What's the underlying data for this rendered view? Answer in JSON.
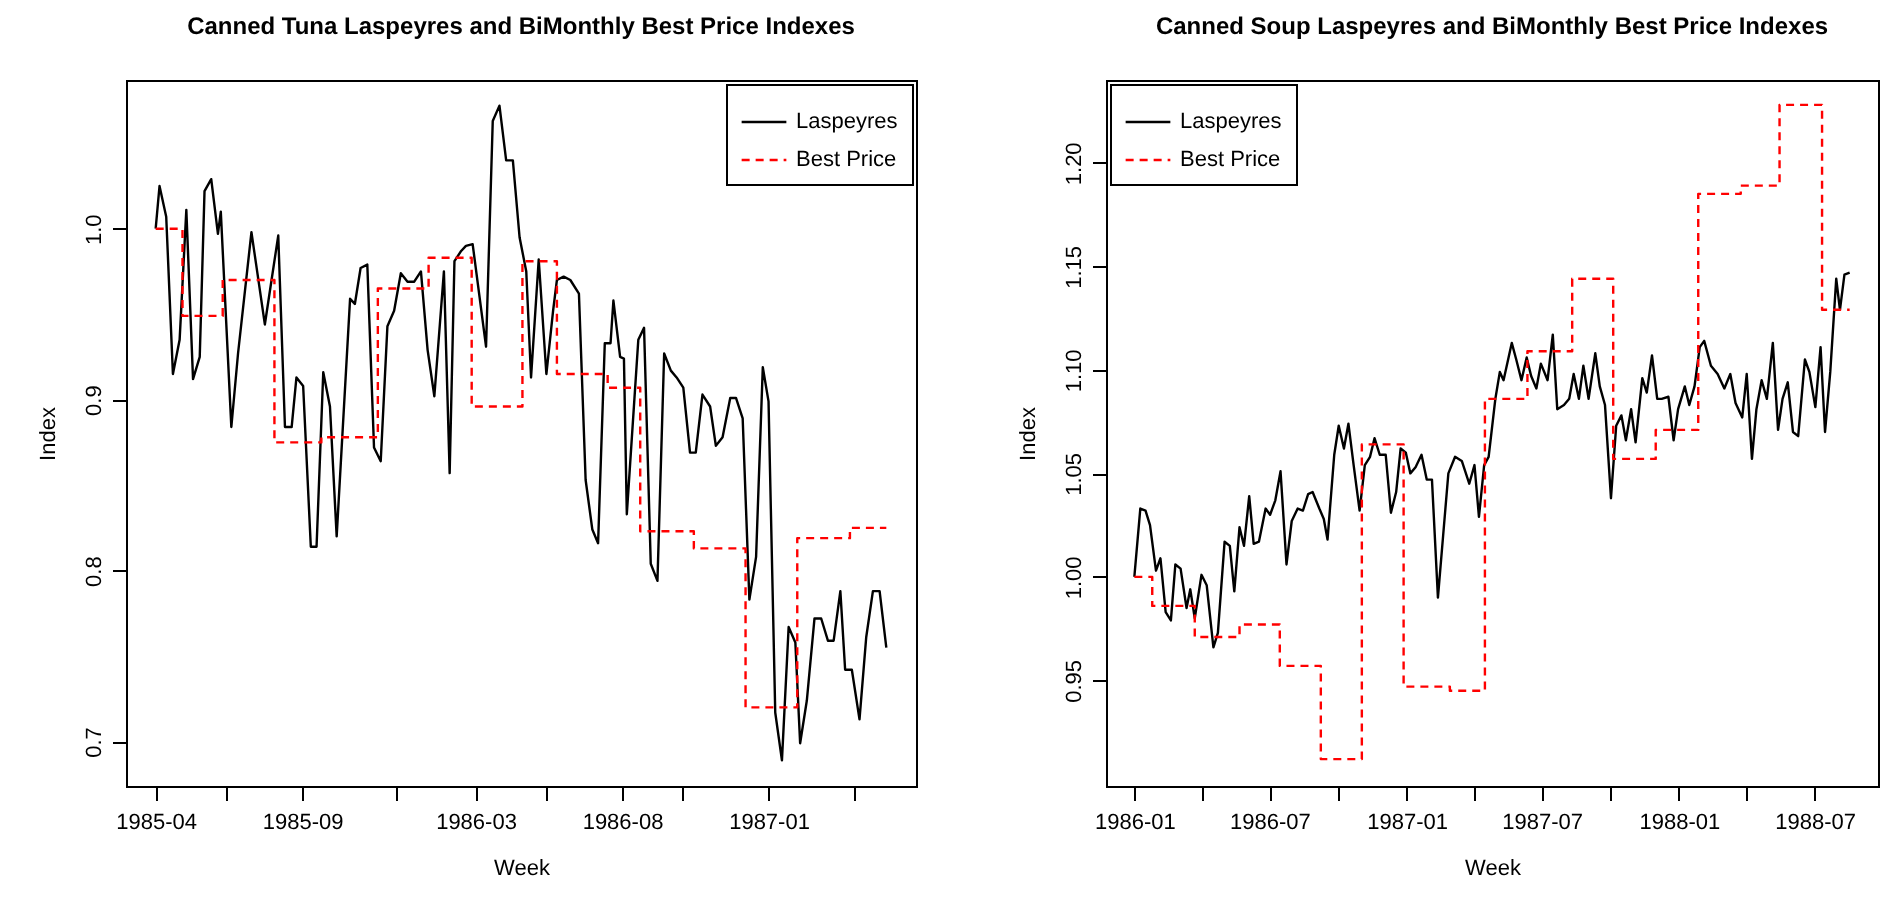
{
  "chart_data": [
    {
      "type": "line",
      "title": "Canned Tuna Laspeyres and BiMonthly Best Price Indexes",
      "xlabel": "Week",
      "ylabel": "Index",
      "legend": "top right",
      "xlim": [
        "1985-03-01",
        "1987-06-04"
      ],
      "ylim": [
        0.674,
        1.087
      ],
      "xticks": [
        "1985-04",
        {
          "value": "1985-06-13",
          "label": null
        },
        "1985-09",
        {
          "value": "1985-12-07",
          "label": null
        },
        "1986-03",
        {
          "value": "1986-05-14",
          "label": null
        },
        "1986-08",
        {
          "value": "1986-10-03",
          "label": null
        },
        "1987-01",
        {
          "value": "1987-03-31",
          "label": null
        }
      ],
      "yticks": [
        0.7,
        0.8,
        0.9,
        {
          "value": 1,
          "label": "1.0"
        }
      ],
      "series": [
        {
          "name": "Laspeyres",
          "color": "#000000",
          "line_style": "solid",
          "x": [
            "1985-04-01",
            "1985-04-05",
            "1985-04-12",
            "1985-04-19",
            "1985-04-26",
            "1985-05-03",
            "1985-05-10",
            "1985-05-17",
            "1985-05-22",
            "1985-05-29",
            "1985-06-05",
            "1985-06-08",
            "1985-06-19",
            "1985-06-26",
            "1985-07-10",
            "1985-07-24",
            "1985-08-07",
            "1985-08-14",
            "1985-08-21",
            "1985-08-26",
            "1985-09-02",
            "1985-09-10",
            "1985-09-16",
            "1985-09-23",
            "1985-09-30",
            "1985-10-07",
            "1985-10-21",
            "1985-10-26",
            "1985-11-01",
            "1985-11-08",
            "1985-11-15",
            "1985-11-22",
            "1985-11-29",
            "1985-12-06",
            "1985-12-13",
            "1985-12-20",
            "1985-12-27",
            "1986-01-03",
            "1986-01-10",
            "1986-01-17",
            "1986-01-27",
            "1986-02-02",
            "1986-02-07",
            "1986-02-14",
            "1986-02-19",
            "1986-02-26",
            "1986-03-12",
            "1986-03-19",
            "1986-03-26",
            "1986-04-02",
            "1986-04-09",
            "1986-04-16",
            "1986-04-23",
            "1986-04-28",
            "1986-05-06",
            "1986-05-14",
            "1986-05-21",
            "1986-05-25",
            "1986-06-01",
            "1986-06-08",
            "1986-06-17",
            "1986-06-24",
            "1986-07-01",
            "1986-07-07",
            "1986-07-14",
            "1986-07-20",
            "1986-07-23",
            "1986-07-30",
            "1986-08-03",
            "1986-08-06",
            "1986-08-18",
            "1986-08-24",
            "1986-08-31",
            "1986-09-07",
            "1986-09-14",
            "1986-09-21",
            "1986-09-27",
            "1986-10-04",
            "1986-10-11",
            "1986-10-17",
            "1986-10-24",
            "1986-11-01",
            "1986-11-07",
            "1986-11-14",
            "1986-11-22",
            "1986-11-28",
            "1986-12-05",
            "1986-12-12",
            "1986-12-19",
            "1986-12-26",
            "1987-01-01",
            "1987-01-08",
            "1987-01-15",
            "1987-01-22",
            "1987-01-29",
            "1987-02-03",
            "1987-02-10",
            "1987-02-18",
            "1987-02-25",
            "1987-03-04",
            "1987-03-10",
            "1987-03-17",
            "1987-03-22",
            "1987-03-29",
            "1987-04-06",
            "1987-04-13",
            "1987-04-20",
            "1987-04-27",
            "1987-05-04"
          ],
          "values": [
            1.0,
            1.025,
            1.007,
            0.915,
            0.935,
            1.011,
            0.912,
            0.925,
            1.022,
            1.029,
            0.997,
            1.01,
            0.884,
            0.927,
            0.998,
            0.944,
            0.996,
            0.884,
            0.884,
            0.913,
            0.908,
            0.814,
            0.814,
            0.916,
            0.896,
            0.82,
            0.959,
            0.956,
            0.977,
            0.979,
            0.872,
            0.864,
            0.943,
            0.952,
            0.974,
            0.969,
            0.969,
            0.975,
            0.929,
            0.902,
            0.975,
            0.857,
            0.981,
            0.987,
            0.99,
            0.991,
            0.931,
            1.063,
            1.072,
            1.04,
            1.04,
            0.995,
            0.975,
            0.913,
            0.982,
            0.915,
            0.952,
            0.97,
            0.972,
            0.97,
            0.962,
            0.853,
            0.824,
            0.816,
            0.933,
            0.933,
            0.958,
            0.925,
            0.924,
            0.833,
            0.935,
            0.942,
            0.804,
            0.794,
            0.927,
            0.917,
            0.913,
            0.907,
            0.869,
            0.869,
            0.903,
            0.896,
            0.873,
            0.878,
            0.901,
            0.901,
            0.889,
            0.783,
            0.808,
            0.919,
            0.899,
            0.717,
            0.689,
            0.767,
            0.758,
            0.699,
            0.724,
            0.772,
            0.772,
            0.759,
            0.759,
            0.788,
            0.742,
            0.742,
            0.713,
            0.761,
            0.788,
            0.788,
            0.755
          ]
        },
        {
          "name": "Best Price",
          "color": "#ff0000",
          "type": "step",
          "line_style": "dashed",
          "x": [
            "1985-04-01",
            "1985-04-29",
            "1985-06-10",
            "1985-08-03",
            "1985-09-21",
            "1985-11-19",
            "1986-01-11",
            "1986-02-25",
            "1986-04-19",
            "1986-05-25",
            "1986-07-17",
            "1986-08-20",
            "1986-10-15",
            "1986-12-08",
            "1987-01-31",
            "1987-03-27",
            "1987-05-04"
          ],
          "values": [
            1.0,
            0.949,
            0.97,
            0.875,
            0.878,
            0.965,
            0.983,
            0.896,
            0.981,
            0.915,
            0.907,
            0.823,
            0.813,
            0.72,
            0.819,
            0.825,
            0.825
          ]
        }
      ]
    },
    {
      "type": "line",
      "title": "Canned Soup Laspeyres and BiMonthly Best Price Indexes",
      "xlabel": "Week",
      "ylabel": "Index",
      "legend": "top left",
      "xlim": [
        "1985-11-24",
        "1988-09-24"
      ],
      "ylim": [
        0.899,
        1.24
      ],
      "xticks": [
        "1986-01",
        {
          "value": "1986-04",
          "label": null
        },
        "1986-07",
        {
          "value": "1986-10",
          "label": null
        },
        "1987-01",
        {
          "value": "1987-04",
          "label": null
        },
        "1987-07",
        {
          "value": "1987-10",
          "label": null
        },
        "1988-01",
        {
          "value": "1988-04",
          "label": null
        },
        "1988-07"
      ],
      "yticks": [
        0.95,
        {
          "value": 1,
          "label": "1.00"
        },
        1.05,
        {
          "value": 1.1,
          "label": "1.10"
        },
        1.15,
        {
          "value": 1.2,
          "label": "1.20"
        }
      ],
      "series": [
        {
          "name": "Laspeyres",
          "color": "#000000",
          "line_style": "solid",
          "x": [
            "1986-01-01",
            "1986-01-09",
            "1986-01-16",
            "1986-01-22",
            "1986-01-30",
            "1986-02-05",
            "1986-02-12",
            "1986-02-19",
            "1986-02-25",
            "1986-03-04",
            "1986-03-12",
            "1986-03-17",
            "1986-03-23",
            "1986-04-01",
            "1986-04-08",
            "1986-04-17",
            "1986-04-23",
            "1986-05-02",
            "1986-05-09",
            "1986-05-15",
            "1986-05-22",
            "1986-05-28",
            "1986-06-04",
            "1986-06-10",
            "1986-06-17",
            "1986-06-26",
            "1986-07-02",
            "1986-07-09",
            "1986-07-16",
            "1986-07-24",
            "1986-07-31",
            "1986-08-08",
            "1986-08-15",
            "1986-08-22",
            "1986-08-28",
            "1986-09-06",
            "1986-09-12",
            "1986-09-17",
            "1986-09-26",
            "1986-10-02",
            "1986-10-09",
            "1986-10-15",
            "1986-10-22",
            "1986-10-30",
            "1986-11-06",
            "1986-11-13",
            "1986-11-19",
            "1986-11-26",
            "1986-12-04",
            "1986-12-11",
            "1986-12-18",
            "1986-12-24",
            "1986-12-31",
            "1987-01-06",
            "1987-01-13",
            "1987-01-21",
            "1987-01-28",
            "1987-02-04",
            "1987-02-12",
            "1987-02-19",
            "1987-02-26",
            "1987-03-07",
            "1987-03-16",
            "1987-03-26",
            "1987-04-02",
            "1987-04-08",
            "1987-04-15",
            "1987-04-21",
            "1987-04-30",
            "1987-05-06",
            "1987-05-11",
            "1987-05-22",
            "1987-05-28",
            "1987-06-04",
            "1987-06-11",
            "1987-06-17",
            "1987-06-24",
            "1987-06-30",
            "1987-07-09",
            "1987-07-16",
            "1987-07-22",
            "1987-07-31",
            "1987-08-07",
            "1987-08-13",
            "1987-08-20",
            "1987-08-26",
            "1987-09-02",
            "1987-09-11",
            "1987-09-17",
            "1987-09-24",
            "1987-10-02",
            "1987-10-09",
            "1987-10-16",
            "1987-10-22",
            "1987-10-29",
            "1987-11-04",
            "1987-11-13",
            "1987-11-19",
            "1987-11-26",
            "1987-12-03",
            "1987-12-09",
            "1987-12-18",
            "1987-12-25",
            "1987-12-31",
            "1988-01-09",
            "1988-01-15",
            "1988-01-22",
            "1988-01-29",
            "1988-02-04",
            "1988-02-13",
            "1988-02-22",
            "1988-03-02",
            "1988-03-10",
            "1988-03-17",
            "1988-03-26",
            "1988-04-01",
            "1988-04-08",
            "1988-04-14",
            "1988-04-21",
            "1988-04-28",
            "1988-05-06",
            "1988-05-13",
            "1988-05-19",
            "1988-05-26",
            "1988-06-02",
            "1988-06-09",
            "1988-06-18",
            "1988-06-24",
            "1988-07-02",
            "1988-07-09",
            "1988-07-15",
            "1988-07-22",
            "1988-07-30",
            "1988-08-04",
            "1988-08-10",
            "1988-08-17"
          ],
          "values": [
            1.0,
            1.033,
            1.032,
            1.025,
            1.003,
            1.009,
            0.983,
            0.979,
            1.006,
            1.004,
            0.985,
            0.994,
            0.98,
            1.001,
            0.996,
            0.966,
            0.973,
            1.017,
            1.015,
            0.993,
            1.024,
            1.015,
            1.039,
            1.016,
            1.017,
            1.033,
            1.03,
            1.037,
            1.051,
            1.006,
            1.027,
            1.033,
            1.032,
            1.04,
            1.041,
            1.033,
            1.028,
            1.018,
            1.059,
            1.073,
            1.062,
            1.074,
            1.054,
            1.032,
            1.054,
            1.058,
            1.067,
            1.059,
            1.059,
            1.031,
            1.041,
            1.062,
            1.06,
            1.05,
            1.053,
            1.059,
            1.047,
            1.047,
            0.99,
            1.02,
            1.05,
            1.058,
            1.056,
            1.045,
            1.054,
            1.029,
            1.054,
            1.058,
            1.086,
            1.099,
            1.095,
            1.113,
            1.105,
            1.095,
            1.106,
            1.097,
            1.091,
            1.103,
            1.095,
            1.117,
            1.081,
            1.083,
            1.086,
            1.098,
            1.086,
            1.102,
            1.086,
            1.108,
            1.092,
            1.083,
            1.038,
            1.073,
            1.078,
            1.066,
            1.081,
            1.065,
            1.096,
            1.089,
            1.107,
            1.086,
            1.086,
            1.087,
            1.066,
            1.081,
            1.092,
            1.083,
            1.092,
            1.111,
            1.114,
            1.102,
            1.098,
            1.091,
            1.098,
            1.084,
            1.077,
            1.098,
            1.057,
            1.081,
            1.095,
            1.086,
            1.113,
            1.071,
            1.086,
            1.094,
            1.07,
            1.068,
            1.105,
            1.099,
            1.082,
            1.111,
            1.07,
            1.099,
            1.144,
            1.129,
            1.146,
            1.147
          ]
        },
        {
          "name": "Best Price",
          "color": "#ff0000",
          "type": "step",
          "line_style": "dashed",
          "x": [
            "1986-01-01",
            "1986-01-25",
            "1986-03-23",
            "1986-05-22",
            "1986-07-15",
            "1986-09-08",
            "1986-11-02",
            "1986-12-28",
            "1987-02-28",
            "1987-04-16",
            "1987-06-12",
            "1987-08-11",
            "1987-10-05",
            "1987-12-01",
            "1988-01-27",
            "1988-03-24",
            "1988-05-15",
            "1988-07-11",
            "1988-08-17"
          ],
          "values": [
            1.0,
            0.986,
            0.971,
            0.977,
            0.957,
            0.912,
            1.064,
            0.947,
            0.945,
            1.086,
            1.109,
            1.144,
            1.057,
            1.071,
            1.185,
            1.189,
            1.228,
            1.129,
            1.129
          ]
        }
      ]
    }
  ]
}
